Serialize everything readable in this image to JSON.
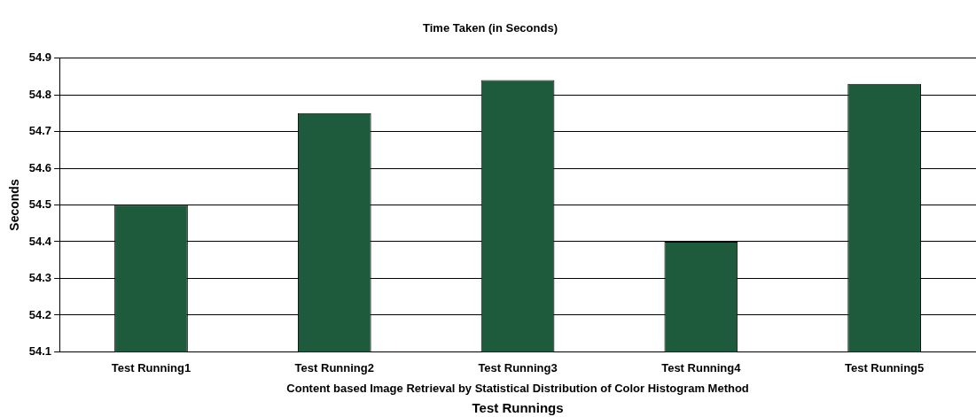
{
  "chart_data": {
    "type": "bar",
    "title": "Time Taken (in Seconds)",
    "xlabel": "Test Runnings",
    "ylabel": "Seconds",
    "categories": [
      "Test Running1",
      "Test Running2",
      "Test Running3",
      "Test Running4",
      "Test Running5"
    ],
    "values": [
      54.5,
      54.75,
      54.84,
      54.4,
      54.83
    ],
    "color": "#1e5a3c",
    "ylim": [
      54.1,
      54.9
    ],
    "yticks": [
      54.1,
      54.2,
      54.3,
      54.4,
      54.5,
      54.6,
      54.7,
      54.8,
      54.9
    ],
    "grid": "y",
    "legend": false,
    "annotations": [
      "Content based Image Retrieval by Statistical Distribution of Color Histogram Method"
    ]
  }
}
